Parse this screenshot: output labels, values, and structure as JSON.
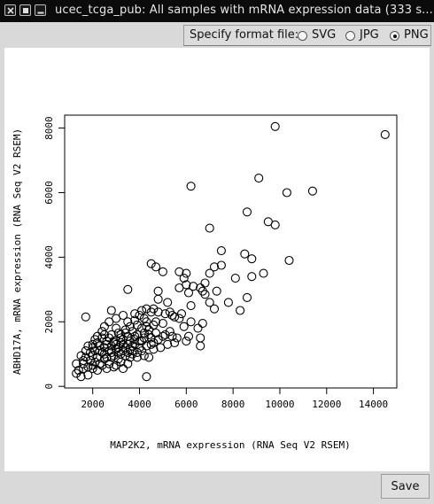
{
  "window": {
    "title": "ucec_tcga_pub: All samples with mRNA expression data (333 s..."
  },
  "format_bar": {
    "label": "Specify format file:",
    "options": [
      {
        "label": "SVG",
        "selected": false
      },
      {
        "label": "JPG",
        "selected": false
      },
      {
        "label": "PNG",
        "selected": true
      }
    ]
  },
  "save_label": "Save",
  "chart_data": {
    "type": "scatter",
    "xlabel": "MAP2K2, mRNA expression (RNA Seq V2 RSEM)",
    "ylabel": "ABHD17A, mRNA expression (RNA Seq V2 RSEM)",
    "xlim": [
      800,
      15000
    ],
    "ylim": [
      -50,
      8400
    ],
    "x_ticks": [
      2000,
      4000,
      6000,
      8000,
      10000,
      12000,
      14000
    ],
    "y_ticks": [
      0,
      2000,
      4000,
      6000,
      8000
    ],
    "x_tick_labels": [
      "2000",
      "4000",
      "6000",
      "8000",
      "10000",
      "12000",
      "14000"
    ],
    "y_tick_labels": [
      "0",
      "2000",
      "4000",
      "6000",
      "8000"
    ],
    "marker": "open-circle",
    "point_color": "#000000",
    "grid": false,
    "points": [
      [
        9800,
        8050
      ],
      [
        14500,
        7800
      ],
      [
        6200,
        6200
      ],
      [
        9100,
        6450
      ],
      [
        10300,
        6000
      ],
      [
        11400,
        6050
      ],
      [
        8600,
        5400
      ],
      [
        9500,
        5100
      ],
      [
        9800,
        5000
      ],
      [
        7000,
        4900
      ],
      [
        7500,
        4200
      ],
      [
        8500,
        4100
      ],
      [
        8800,
        3950
      ],
      [
        10400,
        3900
      ],
      [
        7500,
        3750
      ],
      [
        4500,
        3800
      ],
      [
        4700,
        3700
      ],
      [
        7200,
        3700
      ],
      [
        5000,
        3550
      ],
      [
        5700,
        3550
      ],
      [
        6000,
        3500
      ],
      [
        7000,
        3500
      ],
      [
        9300,
        3500
      ],
      [
        8800,
        3400
      ],
      [
        5900,
        3350
      ],
      [
        6800,
        3200
      ],
      [
        6000,
        3150
      ],
      [
        6300,
        3100
      ],
      [
        6600,
        3050
      ],
      [
        5700,
        3050
      ],
      [
        8100,
        3350
      ],
      [
        3500,
        3000
      ],
      [
        4800,
        2950
      ],
      [
        6800,
        2850
      ],
      [
        6100,
        2900
      ],
      [
        7300,
        2950
      ],
      [
        6700,
        2950
      ],
      [
        4800,
        2700
      ],
      [
        8600,
        2750
      ],
      [
        5200,
        2600
      ],
      [
        6200,
        2500
      ],
      [
        7000,
        2600
      ],
      [
        7200,
        2400
      ],
      [
        7800,
        2600
      ],
      [
        8300,
        2350
      ],
      [
        4300,
        2400
      ],
      [
        4500,
        2300
      ],
      [
        4800,
        2300
      ],
      [
        5400,
        2200
      ],
      [
        5700,
        2100
      ],
      [
        6200,
        2000
      ],
      [
        6700,
        1950
      ],
      [
        5000,
        1950
      ],
      [
        5900,
        1850
      ],
      [
        6500,
        1800
      ],
      [
        4000,
        2200
      ],
      [
        4200,
        2100
      ],
      [
        3800,
        2050
      ],
      [
        3500,
        2000
      ],
      [
        3300,
        2200
      ],
      [
        3000,
        2100
      ],
      [
        2700,
        2000
      ],
      [
        2800,
        2350
      ],
      [
        1700,
        2150
      ],
      [
        2500,
        1850
      ],
      [
        3000,
        1800
      ],
      [
        3400,
        1750
      ],
      [
        3700,
        1700
      ],
      [
        4100,
        1800
      ],
      [
        4400,
        1750
      ],
      [
        4700,
        1650
      ],
      [
        5100,
        1600
      ],
      [
        5600,
        1500
      ],
      [
        6100,
        1550
      ],
      [
        6600,
        1500
      ],
      [
        5200,
        1300
      ],
      [
        6600,
        1250
      ],
      [
        6000,
        1400
      ],
      [
        5500,
        1350
      ],
      [
        4500,
        1300
      ],
      [
        2200,
        1550
      ],
      [
        2400,
        1500
      ],
      [
        2000,
        1300
      ],
      [
        2300,
        1250
      ],
      [
        2600,
        1300
      ],
      [
        2900,
        1400
      ],
      [
        3200,
        1350
      ],
      [
        3500,
        1300
      ],
      [
        3800,
        1450
      ],
      [
        4100,
        1400
      ],
      [
        4300,
        1250
      ],
      [
        4600,
        1150
      ],
      [
        4900,
        1200
      ],
      [
        4200,
        950
      ],
      [
        4400,
        900
      ],
      [
        4100,
        1100
      ],
      [
        3600,
        1150
      ],
      [
        3300,
        1100
      ],
      [
        3000,
        1150
      ],
      [
        2700,
        1100
      ],
      [
        2400,
        1050
      ],
      [
        2100,
        1100
      ],
      [
        1900,
        1050
      ],
      [
        2200,
        900
      ],
      [
        2500,
        850
      ],
      [
        2800,
        900
      ],
      [
        3100,
        850
      ],
      [
        3400,
        950
      ],
      [
        3700,
        1000
      ],
      [
        3900,
        900
      ],
      [
        1500,
        950
      ],
      [
        1300,
        700
      ],
      [
        1600,
        700
      ],
      [
        1900,
        800
      ],
      [
        2100,
        750
      ],
      [
        2400,
        650
      ],
      [
        2700,
        700
      ],
      [
        3000,
        650
      ],
      [
        3200,
        750
      ],
      [
        3500,
        700
      ],
      [
        1400,
        500
      ],
      [
        1600,
        550
      ],
      [
        1800,
        600
      ],
      [
        2000,
        550
      ],
      [
        2200,
        500
      ],
      [
        1500,
        300
      ],
      [
        1800,
        350
      ],
      [
        1300,
        400
      ],
      [
        4300,
        300
      ],
      [
        2600,
        550
      ],
      [
        2900,
        600
      ],
      [
        3300,
        550
      ],
      [
        2000,
        950
      ],
      [
        1700,
        900
      ],
      [
        2300,
        700
      ],
      [
        2500,
        1000
      ],
      [
        2800,
        1250
      ],
      [
        3100,
        1050
      ],
      [
        3400,
        1200
      ],
      [
        3700,
        1250
      ],
      [
        2000,
        1200
      ],
      [
        2600,
        1400
      ],
      [
        3200,
        1500
      ],
      [
        3500,
        1550
      ],
      [
        3900,
        1600
      ],
      [
        4200,
        1500
      ],
      [
        4500,
        1500
      ],
      [
        4800,
        1450
      ],
      [
        5300,
        1700
      ],
      [
        4600,
        1900
      ],
      [
        4300,
        1850
      ],
      [
        3900,
        1900
      ],
      [
        3600,
        1850
      ],
      [
        3100,
        1650
      ],
      [
        2800,
        1600
      ],
      [
        2400,
        1700
      ],
      [
        2100,
        1450
      ],
      [
        1800,
        1250
      ],
      [
        2300,
        1100
      ],
      [
        3600,
        900
      ],
      [
        3800,
        1300
      ],
      [
        4000,
        1200
      ],
      [
        2900,
        950
      ],
      [
        2500,
        1200
      ],
      [
        3300,
        1300
      ],
      [
        3800,
        1550
      ],
      [
        4400,
        1600
      ],
      [
        4700,
        2000
      ],
      [
        5100,
        2250
      ],
      [
        5500,
        2150
      ],
      [
        3400,
        1650
      ],
      [
        2700,
        1500
      ],
      [
        2200,
        1350
      ],
      [
        1700,
        1100
      ],
      [
        3000,
        1300
      ],
      [
        3200,
        1000
      ],
      [
        3700,
        1100
      ],
      [
        4000,
        1400
      ],
      [
        4200,
        1650
      ],
      [
        4600,
        1350
      ],
      [
        5000,
        1550
      ],
      [
        5400,
        1550
      ],
      [
        2600,
        900
      ],
      [
        2000,
        650
      ],
      [
        1600,
        800
      ],
      [
        2800,
        1050
      ],
      [
        3100,
        1200
      ],
      [
        3500,
        1050
      ],
      [
        3900,
        1050
      ],
      [
        4300,
        2000
      ],
      [
        4100,
        2350
      ],
      [
        3800,
        2250
      ],
      [
        4600,
        2400
      ],
      [
        5300,
        2300
      ],
      [
        5800,
        2250
      ],
      [
        3600,
        1400
      ],
      [
        3300,
        1450
      ],
      [
        2900,
        1350
      ],
      [
        2500,
        1600
      ],
      [
        3200,
        1600
      ]
    ]
  }
}
